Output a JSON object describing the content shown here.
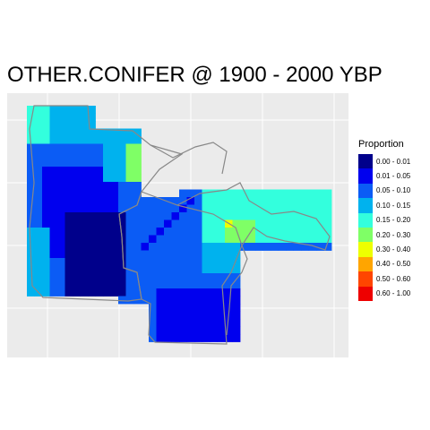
{
  "title": "OTHER.CONIFER @ 1900 - 2000 YBP",
  "legend": {
    "title": "Proportion",
    "items": [
      {
        "label": "0.00 - 0.01",
        "color": "#00008b"
      },
      {
        "label": "0.01 - 0.05",
        "color": "#0000ee"
      },
      {
        "label": "0.05 - 0.10",
        "color": "#0b5cf5"
      },
      {
        "label": "0.10 - 0.15",
        "color": "#00b2ee"
      },
      {
        "label": "0.15 - 0.20",
        "color": "#33ffdd"
      },
      {
        "label": "0.20 - 0.30",
        "color": "#7fff66"
      },
      {
        "label": "0.30 - 0.40",
        "color": "#eeff00"
      },
      {
        "label": "0.40 - 0.50",
        "color": "#ffa500"
      },
      {
        "label": "0.50 - 0.60",
        "color": "#ff4500"
      },
      {
        "label": "0.60 - 1.00",
        "color": "#ee0000"
      }
    ]
  },
  "map": {
    "background": "#ebebeb",
    "gridline_color": "#ffffff",
    "border_color": "#888888"
  }
}
